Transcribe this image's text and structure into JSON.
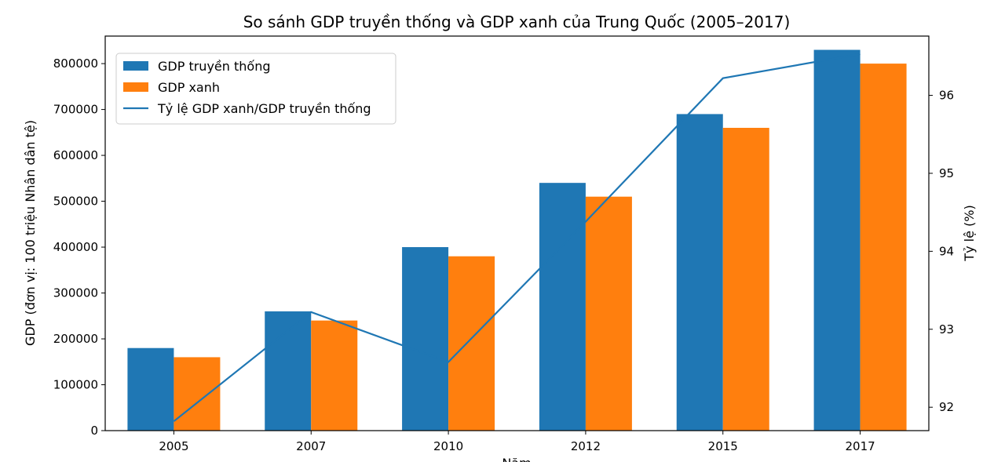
{
  "chart_data": {
    "type": "bar",
    "title": "So sánh GDP truyền thống và GDP xanh của Trung Quốc (2005–2017)",
    "xlabel": "Năm",
    "ylabel": "GDP (đơn vị: 100 triệu Nhân dân tệ)",
    "y2label": "Tỷ lệ (%)",
    "categories": [
      "2005",
      "2007",
      "2010",
      "2012",
      "2015",
      "2017"
    ],
    "series": [
      {
        "name": "GDP truyền thống",
        "type": "bar",
        "axis": "left",
        "color": "#1f77b4",
        "values": [
          180000,
          260000,
          400000,
          540000,
          690000,
          830000
        ]
      },
      {
        "name": "GDP xanh",
        "type": "bar",
        "axis": "left",
        "color": "#ff7f0e",
        "values": [
          160000,
          240000,
          380000,
          510000,
          660000,
          800000
        ]
      },
      {
        "name": "Tỷ lệ GDP xanh/GDP truyền thống",
        "type": "line",
        "axis": "right",
        "color": "#1f77b4",
        "values": [
          91.82,
          93.22,
          92.58,
          94.38,
          96.22,
          96.53
        ]
      }
    ],
    "ylim": [
      0,
      860000
    ],
    "yticks": [
      0,
      100000,
      200000,
      300000,
      400000,
      500000,
      600000,
      700000,
      800000
    ],
    "y2lim": [
      91.7,
      96.76
    ],
    "y2ticks": [
      92,
      93,
      94,
      95,
      96
    ],
    "legend": "top-left",
    "grid": false
  }
}
